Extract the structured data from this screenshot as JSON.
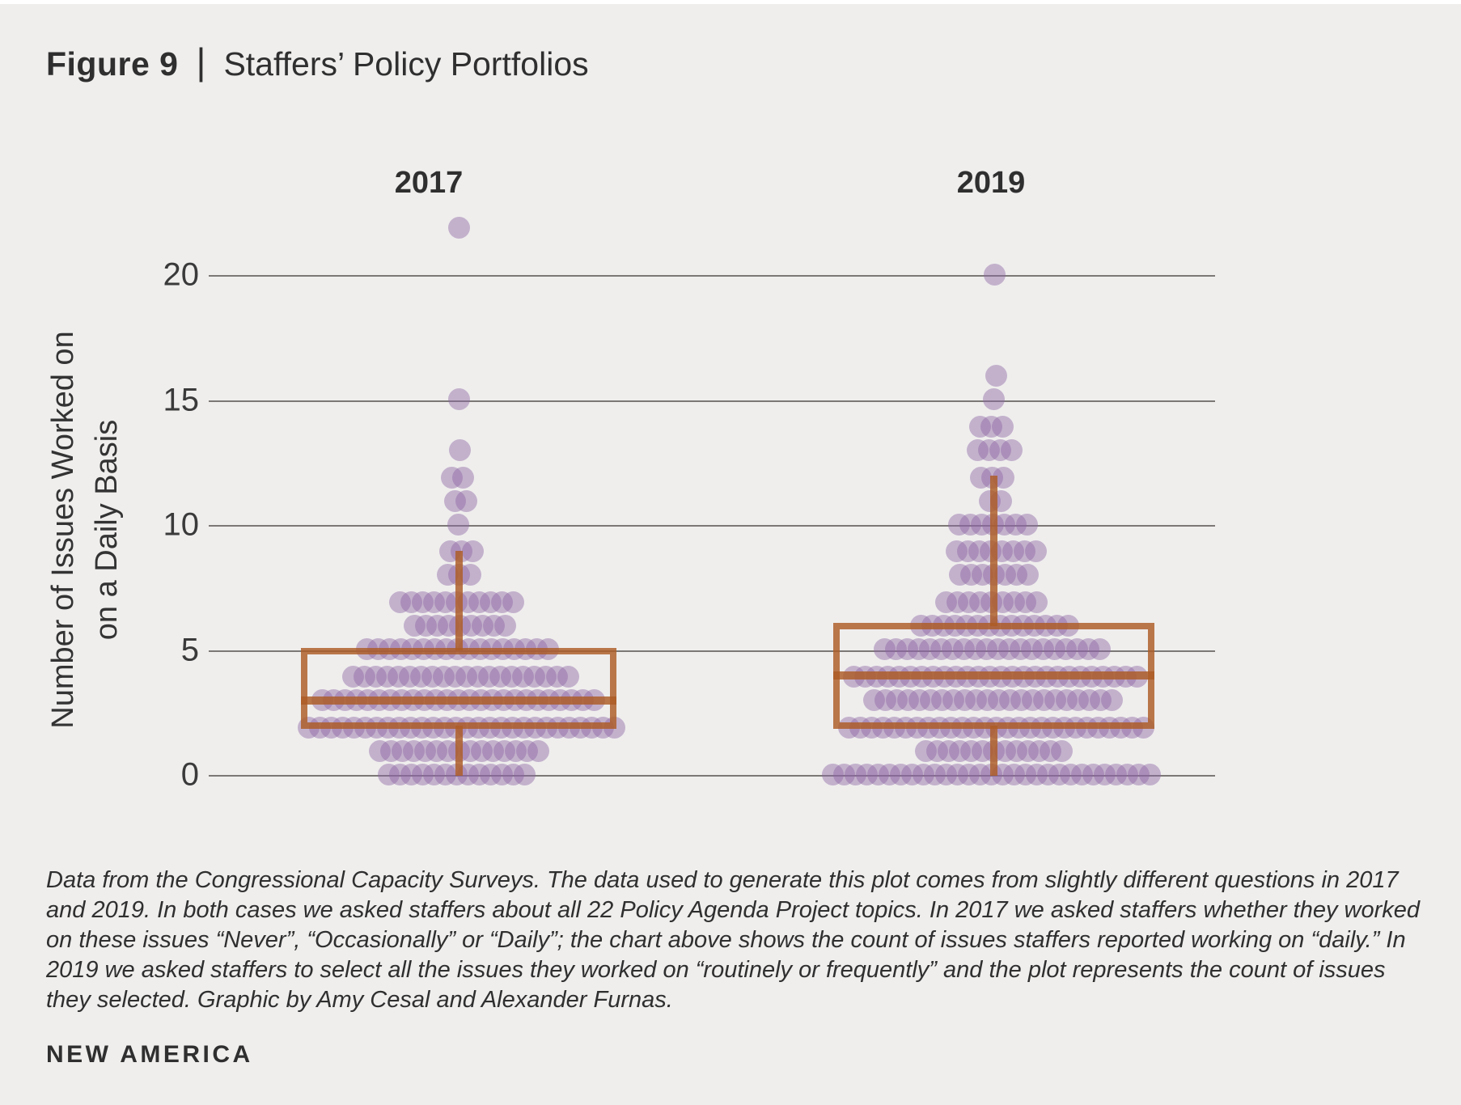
{
  "header": {
    "figure_label": "Figure 9",
    "divider": "|",
    "title": "Staffers’ Policy Portfolios"
  },
  "chart_data": {
    "type": "beeswarm-box",
    "title": "Staffers’ Policy Portfolios",
    "ylabel_lines": [
      "Number of Issues Worked on",
      "on a Daily Basis"
    ],
    "yticks": [
      0,
      5,
      10,
      15,
      20
    ],
    "ylim": [
      0,
      22
    ],
    "grid": true,
    "grid_color": "#7b7876",
    "dot_color": "#8e66a3",
    "dot_opacity": 0.45,
    "box_color": "#ad5c25",
    "box_opacity": 0.82,
    "groups": [
      {
        "label": "2017",
        "box": {
          "q1": 2,
          "median": 3,
          "q3": 5,
          "whisker_low": 0,
          "whisker_high": 9
        },
        "counts": {
          "0": 13,
          "1": 15,
          "2": 28,
          "3": 25,
          "4": 20,
          "5": 17,
          "6": 9,
          "7": 11,
          "8": 3,
          "9": 3,
          "10": 1,
          "11": 2,
          "12": 2,
          "13": 1,
          "15": 1,
          "22": 1
        }
      },
      {
        "label": "2019",
        "box": {
          "q1": 2,
          "median": 4,
          "q3": 6,
          "whisker_low": 0,
          "whisker_high": 12
        },
        "counts": {
          "0": 29,
          "1": 13,
          "2": 27,
          "3": 22,
          "4": 26,
          "5": 20,
          "6": 14,
          "7": 9,
          "8": 7,
          "9": 8,
          "10": 7,
          "11": 2,
          "12": 3,
          "13": 4,
          "14": 3,
          "15": 1,
          "16": 1,
          "20": 1
        }
      }
    ]
  },
  "caption": {
    "text": "Data from the Congressional Capacity Surveys. The data used to generate this plot comes from slightly different questions in 2017 and 2019. In both cases we asked staffers about all 22 Policy Agenda Project topics. In 2017 we asked staffers whether they worked on these issues “Never”, “Occasionally” or “Daily”; the chart above shows the count of issues staffers reported working on “daily.” In 2019 we asked staffers to select all the issues they worked on “routinely or frequently” and the plot represents the count of issues they selected. Graphic by Amy Cesal and Alexander Furnas."
  },
  "footer": {
    "brand": "NEW AMERICA"
  }
}
